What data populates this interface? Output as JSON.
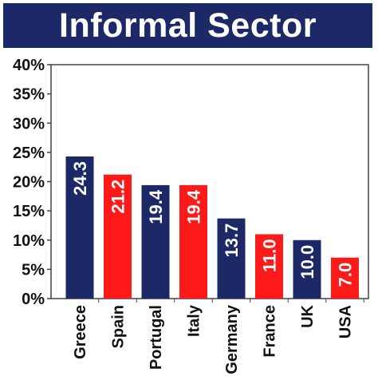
{
  "title": "Informal Sector",
  "colors": {
    "navy": "#1c2966",
    "red": "#ff1a1a",
    "background": "#ffffff",
    "axis": "#444444"
  },
  "chart_data": {
    "type": "bar",
    "title": "Informal Sector",
    "categories": [
      "Greece",
      "Spain",
      "Portugal",
      "Italy",
      "Germany",
      "France",
      "UK",
      "USA"
    ],
    "values": [
      24.3,
      21.2,
      19.4,
      19.4,
      13.7,
      11.0,
      10.0,
      7.0
    ],
    "value_labels": [
      "24.3",
      "21.2",
      "19.4",
      "19.4",
      "13.7",
      "11.0",
      "10.0",
      "7.0"
    ],
    "bar_colors": [
      "#1c2966",
      "#ff1a1a",
      "#1c2966",
      "#ff1a1a",
      "#1c2966",
      "#ff1a1a",
      "#1c2966",
      "#ff1a1a"
    ],
    "y_ticks": [
      0,
      5,
      10,
      15,
      20,
      25,
      30,
      35,
      40
    ],
    "y_tick_labels": [
      "0%",
      "5%",
      "10%",
      "15%",
      "20%",
      "25%",
      "30%",
      "35%",
      "40%"
    ],
    "ylim": [
      0,
      40
    ],
    "xlabel": "",
    "ylabel": "",
    "grid": false,
    "legend": false
  }
}
